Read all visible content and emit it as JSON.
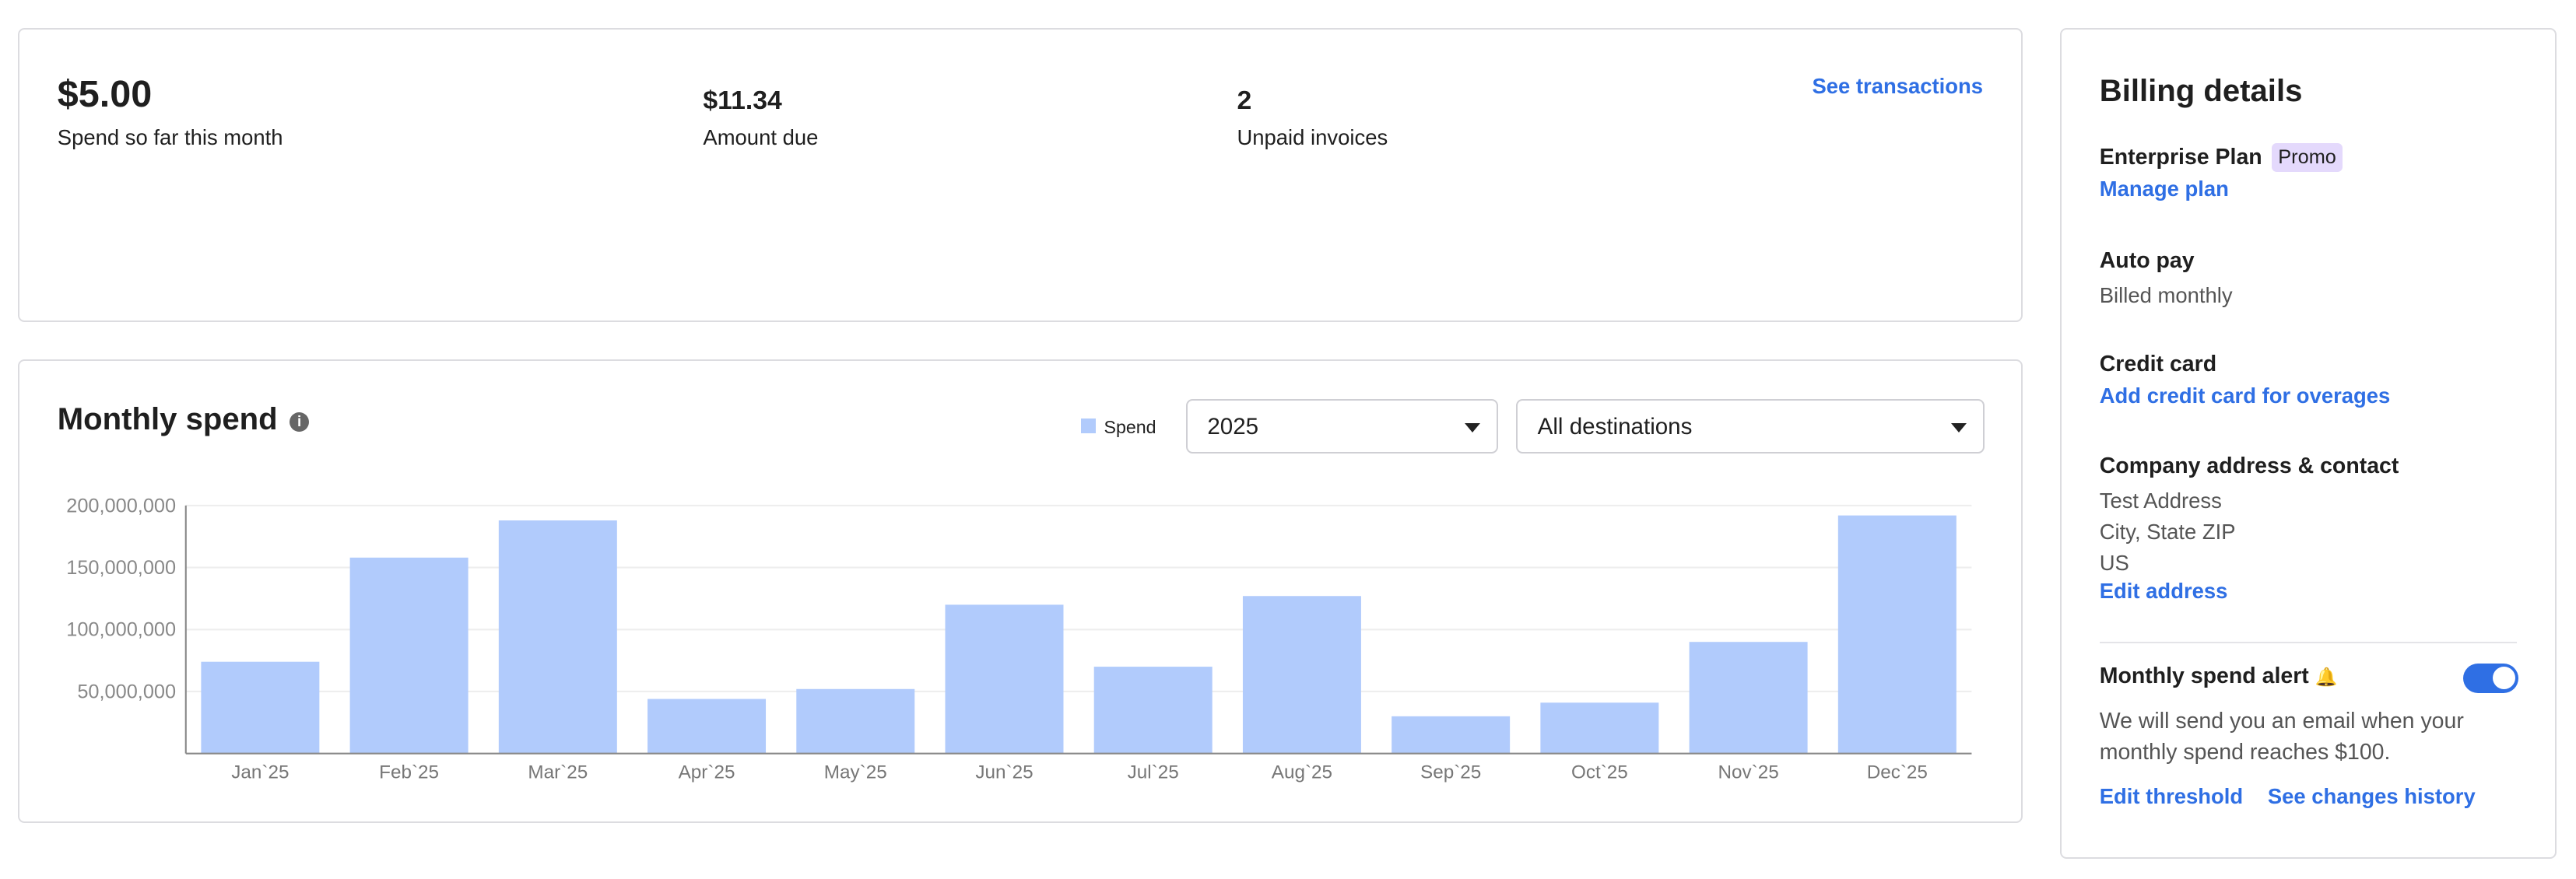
{
  "summary": {
    "spend": {
      "value": "$5.00",
      "label": "Spend so far this month"
    },
    "due": {
      "value": "$11.34",
      "label": "Amount due"
    },
    "unpaid": {
      "value": "2",
      "label": "Unpaid invoices"
    },
    "see_transactions": "See transactions"
  },
  "chart_card": {
    "title": "Monthly spend",
    "year_select": "2025",
    "destination_select": "All destinations"
  },
  "chart_data": {
    "type": "bar",
    "title": "Monthly spend",
    "legend": [
      "Spend"
    ],
    "legend_placement": "top-right",
    "categories": [
      "Jan`25",
      "Feb`25",
      "Mar`25",
      "Apr`25",
      "May`25",
      "Jun`25",
      "Jul`25",
      "Aug`25",
      "Sep`25",
      "Oct`25",
      "Nov`25",
      "Dec`25"
    ],
    "values": [
      74000000,
      158000000,
      188000000,
      44000000,
      52000000,
      120000000,
      70000000,
      127000000,
      30000000,
      41000000,
      90000000,
      192000000
    ],
    "yticks": [
      "50,000,000",
      "100,000,000",
      "150,000,000",
      "200,000,000"
    ],
    "ylim": [
      0,
      200000000
    ],
    "color": "#b1cbfc",
    "grid": true
  },
  "billing": {
    "title": "Billing details",
    "plan": "Enterprise Plan",
    "badge": "Promo",
    "manage": "Manage plan",
    "autopay_h": "Auto pay",
    "autopay_t": "Billed monthly",
    "card_h": "Credit card",
    "card_link": "Add credit card for overages",
    "addr_h": "Company address & contact",
    "addr1": "Test Address",
    "addr2": "City, State ZIP",
    "addr3": "US",
    "addr_link": "Edit address",
    "alert_h": "Monthly spend alert",
    "alert_t": "We will send you an email when your monthly spend reaches $100.",
    "edit_threshold": "Edit threshold",
    "history": "See changes history"
  }
}
